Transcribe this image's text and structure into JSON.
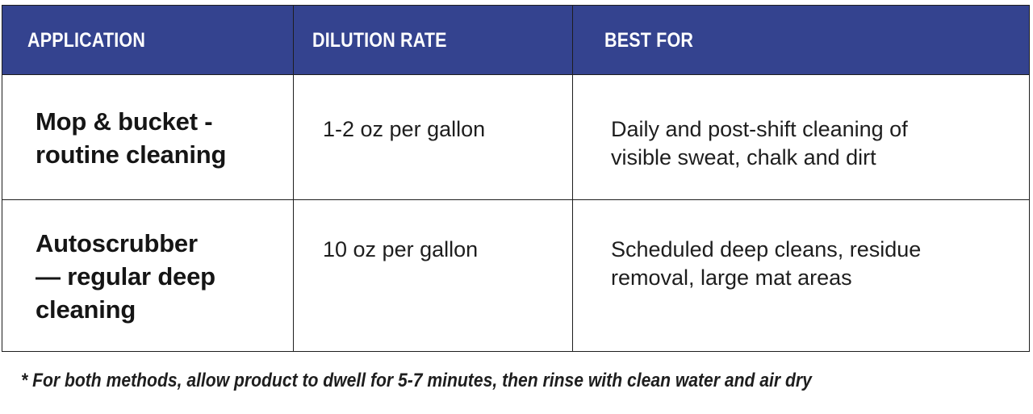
{
  "table": {
    "headers": [
      "APPLICATION",
      "DILUTION RATE",
      "BEST FOR"
    ],
    "rows": [
      {
        "application": "Mop & bucket -\nroutine cleaning",
        "dilution_rate": "1-2 oz per gallon",
        "best_for": "Daily and post-shift cleaning of\nvisible sweat, chalk and dirt"
      },
      {
        "application": "Autoscrubber\n— regular deep\ncleaning",
        "dilution_rate": "10 oz per gallon",
        "best_for": "Scheduled deep cleans, residue\nremoval, large mat areas"
      }
    ]
  },
  "footnote": "* For both methods, allow product to dwell for 5-7 minutes, then rinse with clean water and air dry",
  "colors": {
    "header_background": "#34438f",
    "header_text": "#ffffff",
    "border": "#1e1e1e",
    "body_text": "#1e1e1e"
  }
}
